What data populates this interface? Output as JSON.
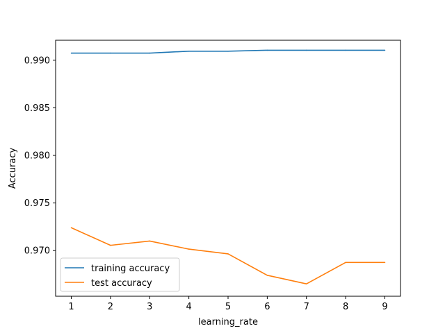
{
  "chart_data": {
    "type": "line",
    "xlabel": "learning_rate",
    "ylabel": "Accuracy",
    "x": [
      1,
      2,
      3,
      4,
      5,
      6,
      7,
      8,
      9
    ],
    "xlim": [
      0.6,
      9.4
    ],
    "ylim": [
      0.9652,
      0.9921
    ],
    "xticks": [
      1,
      2,
      3,
      4,
      5,
      6,
      7,
      8,
      9
    ],
    "yticks": [
      0.97,
      0.975,
      0.98,
      0.985,
      0.99
    ],
    "ytick_labels": [
      "0.970",
      "0.975",
      "0.980",
      "0.985",
      "0.990"
    ],
    "grid": false,
    "legend_position": "lower-left",
    "series": [
      {
        "name": "training accuracy",
        "color": "#1f77b4",
        "values": [
          0.99075,
          0.99075,
          0.99075,
          0.99095,
          0.99095,
          0.99105,
          0.99105,
          0.99105,
          0.99105
        ]
      },
      {
        "name": "test accuracy",
        "color": "#ff7f0e",
        "values": [
          0.9724,
          0.97055,
          0.971,
          0.97015,
          0.96965,
          0.9674,
          0.9665,
          0.96875,
          0.96875
        ]
      }
    ]
  }
}
